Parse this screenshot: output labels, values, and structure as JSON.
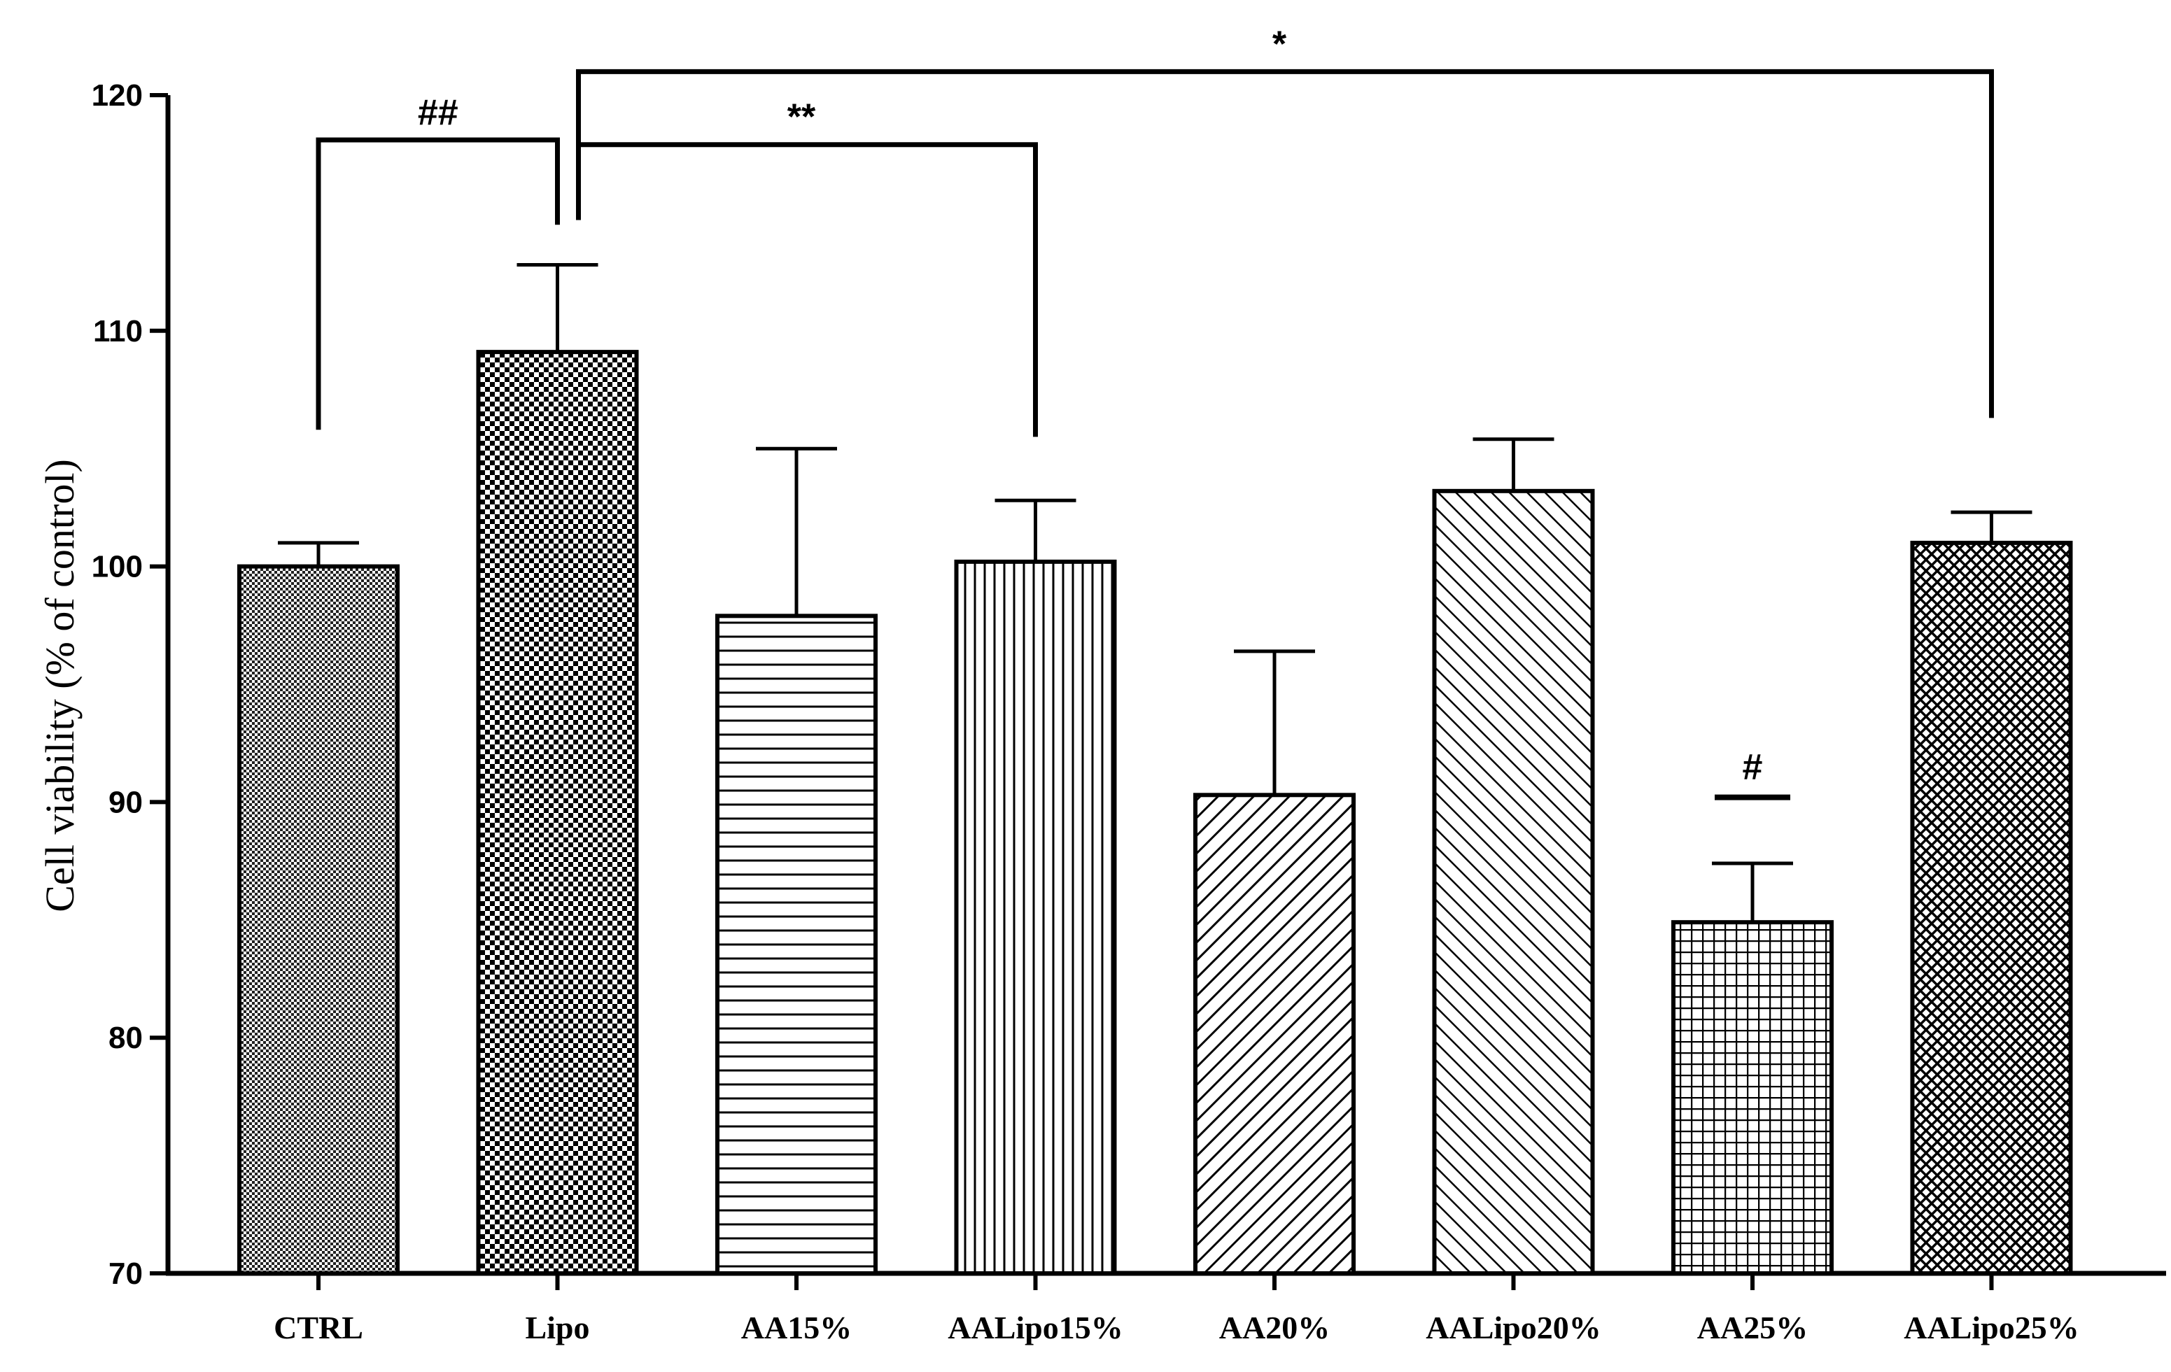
{
  "chart_data": {
    "type": "bar",
    "title": "",
    "xlabel": "",
    "ylabel": "Cell viability (% of control)",
    "ylim": [
      70,
      120
    ],
    "yticks": [
      70,
      80,
      90,
      100,
      110,
      120
    ],
    "grid": false,
    "categories": [
      "CTRL",
      "Lipo",
      "AA15%",
      "AALipo15%",
      "AA20%",
      "AALipo20%",
      "AA25%",
      "AALipo25%"
    ],
    "values": [
      100,
      109.1,
      97.9,
      100.2,
      90.3,
      103.2,
      84.9,
      101.0
    ],
    "errors": [
      1.0,
      3.7,
      7.1,
      2.6,
      6.1,
      2.2,
      2.5,
      1.3
    ],
    "patterns": [
      "fine-check",
      "checker",
      "horizontal-lines",
      "vertical-lines",
      "diagonal-up",
      "diagonal-down",
      "grid",
      "crosshatch"
    ],
    "annotations": [
      {
        "label": "##",
        "type": "bracket",
        "from": 0,
        "to": 1,
        "level": 118.1,
        "left_drop": 105.8,
        "right_drop": 114.5
      },
      {
        "label": "**",
        "type": "bracket",
        "from": 1,
        "to": 3,
        "level": 117.9,
        "left_drop": 114.7,
        "right_drop": 105.5
      },
      {
        "label": "*",
        "type": "bracket",
        "from": 1,
        "to": 7,
        "level": 121.0,
        "left_drop": 114.7,
        "right_drop": 106.3
      },
      {
        "label": "#",
        "type": "bar-mark",
        "at": 6,
        "level": 90.2
      }
    ]
  }
}
